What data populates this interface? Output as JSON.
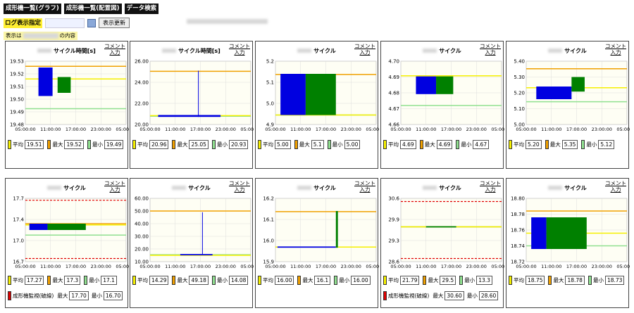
{
  "nav": {
    "btn1": "成形機一覧(グラフ)",
    "btn2": "成形機一覧(配置図)",
    "btn3": "データ検索"
  },
  "log": {
    "label": "ログ表示指定",
    "refresh": "表示更新"
  },
  "display": {
    "prefix": "表示は",
    "suffix": "の内容"
  },
  "comment": "コメント",
  "comment2": "入力",
  "legend": {
    "avg": "平均",
    "max": "最大",
    "min": "最小",
    "monitor": "成形機監視(破線)",
    "mon_max": "最大",
    "mon_min": "最小"
  },
  "colors": {
    "avg": "#f5f000",
    "max": "#f0a000",
    "min": "#90e090",
    "monitor": "#e00000",
    "blue": "#0000e0",
    "green": "#008000"
  },
  "xticks": [
    "05:00:00",
    "11:00:00",
    "17:00:00",
    "23:00:00",
    "05:00:00"
  ],
  "panels": [
    {
      "title": "サイクル時間[s]",
      "yticks": [
        "19.53",
        "19.52",
        "19.51",
        "19.50",
        "19.49",
        "19.48"
      ],
      "avg": "19.51",
      "max": "19.52",
      "min": "19.49"
    },
    {
      "title": "サイクル時間[s]",
      "yticks": [
        "26.00",
        "24.00",
        "22.00",
        "20.00"
      ],
      "avg": "20.96",
      "max": "25.05",
      "min": "20.93"
    },
    {
      "title": "サイクル",
      "yticks": [
        "5.2",
        "5.1",
        "5.0",
        "4.9"
      ],
      "avg": "5.00",
      "max": "5.1",
      "min": "5.00"
    },
    {
      "title": "サイクル",
      "yticks": [
        "4.70",
        "4.69",
        "4.68",
        "4.67",
        "4.66"
      ],
      "avg": "4.69",
      "max": "4.69",
      "min": "4.67"
    },
    {
      "title": "サイクル",
      "yticks": [
        "5.40",
        "5.30",
        "5.20",
        "5.10",
        "5.00"
      ],
      "avg": "5.20",
      "max": "5.35",
      "min": "5.12"
    },
    {
      "title": "サイクル",
      "yticks": [
        "17.7",
        "17.4",
        "17.0",
        "16.7"
      ],
      "avg": "17.27",
      "max": "17.3",
      "min": "17.1",
      "mon_max": "17.70",
      "mon_min": "16.70"
    },
    {
      "title": "サイクル",
      "yticks": [
        "60.00",
        "50.00",
        "40.00",
        "30.00",
        "20.00",
        "10.00"
      ],
      "avg": "14.29",
      "max": "49.18",
      "min": "14.08"
    },
    {
      "title": "サイクル",
      "yticks": [
        "16.2",
        "16.1",
        "16.0",
        "15.9"
      ],
      "avg": "16.00",
      "max": "16.1",
      "min": "16.00"
    },
    {
      "title": "サイクル",
      "yticks": [
        "30.6",
        "29.9",
        "29.3",
        "28.6"
      ],
      "avg": "21.79",
      "max": "29.5",
      "min": "13.3",
      "mon_max": "30.60",
      "mon_min": "28.60"
    },
    {
      "title": "サイクル",
      "yticks": [
        "18.80",
        "18.78",
        "18.76",
        "18.74",
        "18.72"
      ],
      "avg": "18.75",
      "max": "18.78",
      "min": "18.73"
    }
  ]
}
